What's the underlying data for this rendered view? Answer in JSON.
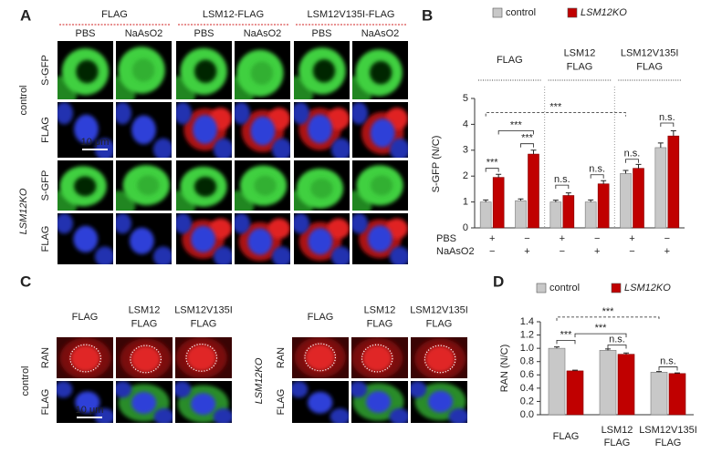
{
  "panel_a": {
    "label": "A",
    "headers": [
      "FLAG",
      "LSM12-FLAG",
      "LSM12V135I-FLAG"
    ],
    "treatments": [
      "PBS",
      "NaAsO2",
      "PBS",
      "NaAsO2",
      "PBS",
      "NaAsO2"
    ],
    "genotypes": [
      "control",
      "LSM12KO"
    ],
    "channels": [
      "S-GFP",
      "FLAG",
      "S-GFP",
      "FLAG"
    ],
    "scale_bar": "10 μm"
  },
  "panel_c": {
    "label": "C",
    "headers": [
      "FLAG",
      "LSM12 FLAG",
      "LSM12V135I FLAG",
      "FLAG",
      "LSM12 FLAG",
      "LSM12V135I FLAG"
    ],
    "genotypes": [
      "control",
      "LSM12KO"
    ],
    "channels": [
      "RAN",
      "FLAG",
      "RAN",
      "FLAG"
    ],
    "scale_bar": "10 μm"
  },
  "chart_data": [
    {
      "type": "bar",
      "panel_label": "B",
      "ylabel": "S-GFP (N/C)",
      "groups": [
        "FLAG",
        "LSM12 FLAG",
        "LSM12V135I FLAG"
      ],
      "categories": [
        null,
        null,
        null,
        null,
        null,
        null
      ],
      "series": [
        {
          "name": "control",
          "color": "#c8c8c8",
          "values": [
            1.0,
            1.05,
            1.0,
            1.0,
            2.1,
            3.1
          ],
          "errors": [
            0.08,
            0.07,
            0.07,
            0.08,
            0.12,
            0.18
          ]
        },
        {
          "name": "LSM12KO",
          "color": "#c00000",
          "values": [
            1.95,
            2.85,
            1.25,
            1.7,
            2.3,
            3.55
          ],
          "errors": [
            0.12,
            0.15,
            0.1,
            0.12,
            0.15,
            0.2
          ]
        }
      ],
      "ylim": [
        0,
        5
      ],
      "yticks": [
        0,
        1,
        2,
        3,
        4,
        5
      ],
      "treatment_rows": [
        {
          "name": "PBS",
          "marks": [
            "+",
            "−",
            "+",
            "−",
            "+",
            "−"
          ]
        },
        {
          "name": "NaAsO2",
          "marks": [
            "−",
            "+",
            "−",
            "+",
            "−",
            "+"
          ]
        }
      ],
      "annotations": [
        "***",
        "***",
        "***",
        "***",
        "n.s.",
        "n.s.",
        "n.s.",
        "n.s."
      ]
    },
    {
      "type": "bar",
      "panel_label": "D",
      "ylabel": "RAN (N/C)",
      "categories": [
        "FLAG",
        "LSM12 FLAG",
        "LSM12V135I FLAG"
      ],
      "series": [
        {
          "name": "control",
          "color": "#c8c8c8",
          "values": [
            1.0,
            0.97,
            0.64
          ],
          "errors": [
            0.02,
            0.02,
            0.01
          ]
        },
        {
          "name": "LSM12KO",
          "color": "#c00000",
          "values": [
            0.66,
            0.91,
            0.62
          ],
          "errors": [
            0.01,
            0.02,
            0.01
          ]
        }
      ],
      "ylim": [
        0,
        1.4
      ],
      "yticks": [
        {
          "value": 0,
          "label": "0.0"
        },
        0.2,
        0.4,
        0.6,
        0.8,
        {
          "value": 1,
          "label": "1.0"
        },
        1.2,
        1.4
      ],
      "annotations": [
        "***",
        "***",
        "***",
        "n.s.",
        "n.s."
      ]
    }
  ]
}
